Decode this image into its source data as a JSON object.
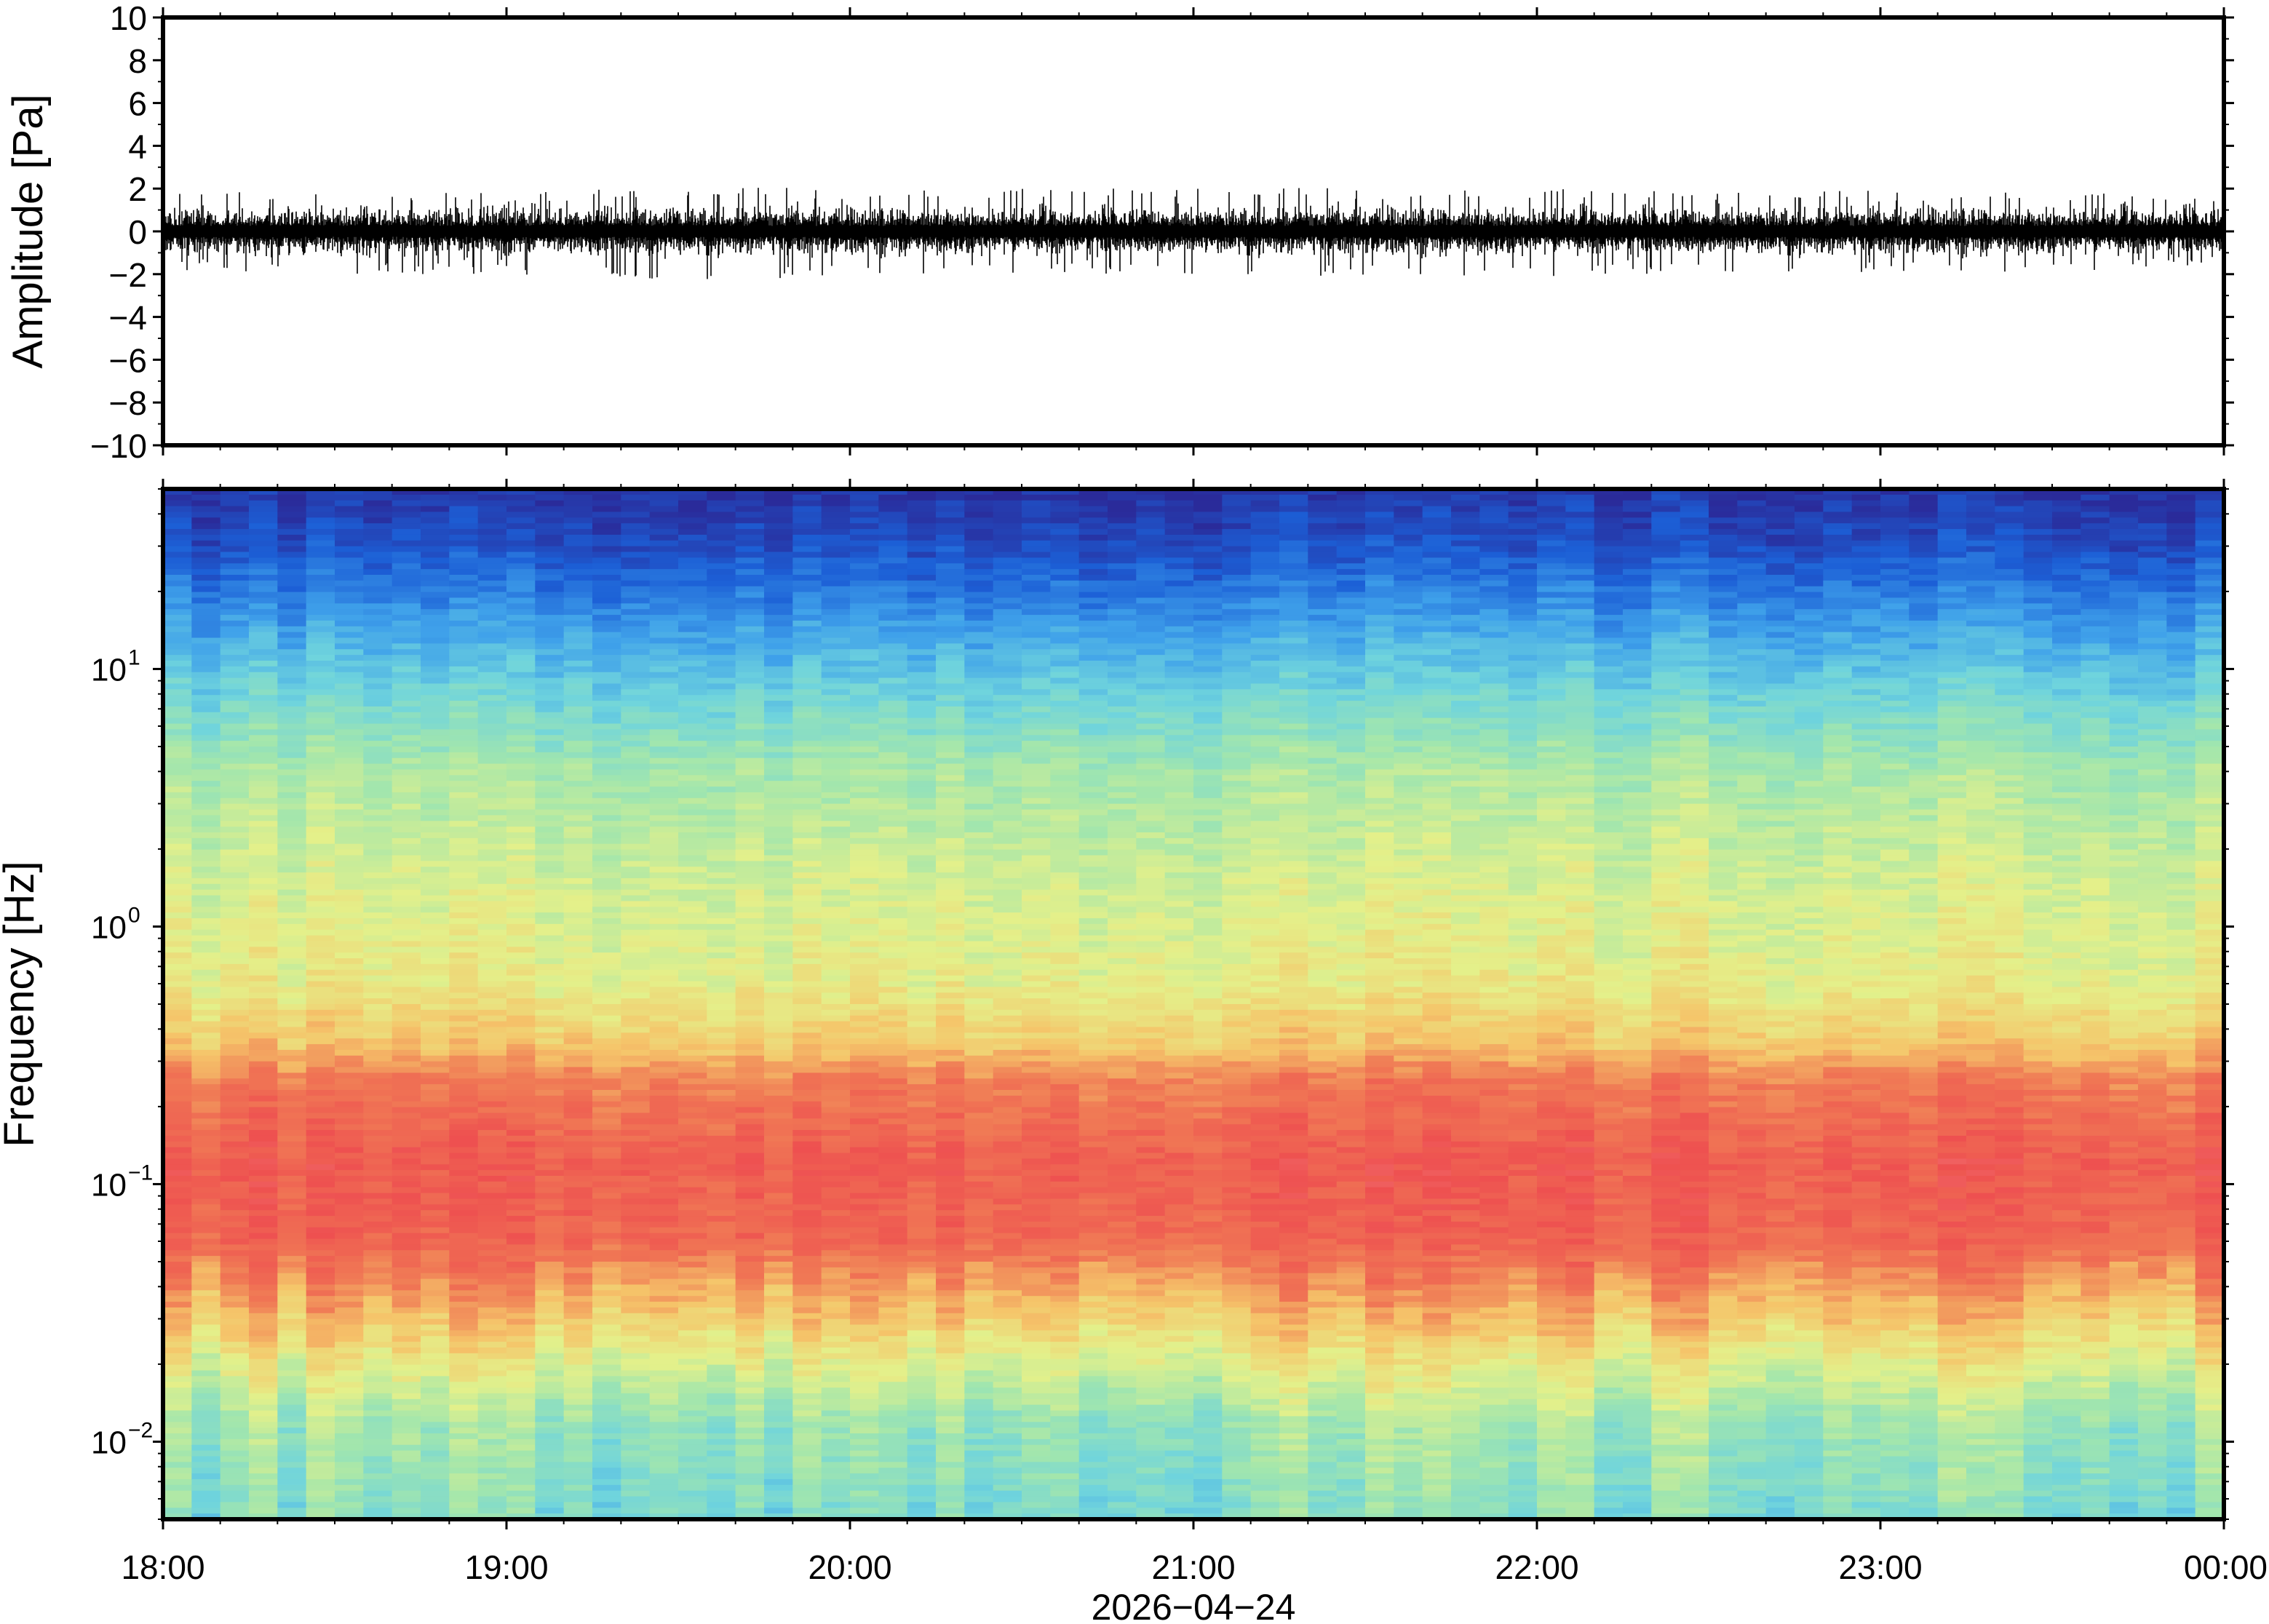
{
  "chart_data": [
    {
      "type": "line",
      "title": "",
      "xlabel": "",
      "ylabel": "Amplitude [Pa]",
      "xlim": [
        "18:00",
        "00:00"
      ],
      "ylim": [
        -10,
        10
      ],
      "yticks": [
        -10,
        -8,
        -6,
        -4,
        -2,
        0,
        2,
        4,
        6,
        8,
        10
      ],
      "yticklabels": [
        "−10",
        "−8",
        "−6",
        "−4",
        "−2",
        "0",
        "2",
        "4",
        "6",
        "8",
        "10"
      ],
      "grid": false,
      "series": [
        {
          "color": "#000000",
          "x": [
            "18:00",
            "18:30",
            "19:00",
            "19:30",
            "20:00",
            "20:30",
            "21:00",
            "21:30",
            "22:00",
            "22:30",
            "23:00",
            "23:30",
            "00:00"
          ],
          "envelope_max": [
            1.9,
            2.0,
            1.8,
            2.1,
            2.0,
            2.0,
            2.1,
            2.0,
            2.0,
            1.9,
            1.9,
            1.9,
            1.5
          ],
          "envelope_min": [
            -1.8,
            -2.0,
            -2.0,
            -2.3,
            -2.1,
            -2.0,
            -2.0,
            -2.1,
            -2.2,
            -1.9,
            -1.9,
            -2.0,
            -1.5
          ],
          "typical_amplitude": 0.8
        }
      ]
    },
    {
      "type": "heatmap",
      "title": "",
      "ylabel": "Frequency [Hz]",
      "xlabel": "2026−04−24",
      "yscale": "log",
      "ylim": [
        0.005,
        50
      ],
      "yticks": [
        0.01,
        0.1,
        1,
        10
      ],
      "ytick_base": "10",
      "ytick_exponents": [
        "−2",
        "−1",
        "0",
        "1"
      ],
      "x_ticks": [
        "18:00",
        "19:00",
        "20:00",
        "21:00",
        "22:00",
        "23:00",
        "00:00"
      ],
      "colormap": [
        "#2a2b9a",
        "#1c5fd6",
        "#3fa1ea",
        "#6fd4dd",
        "#a2e6ad",
        "#e4f08a",
        "#f5c56a",
        "#f07a55",
        "#ee5050",
        "#f48a8a"
      ],
      "bands": [
        {
          "freq_range": [
            25,
            50
          ],
          "color": "#2a2b9a"
        },
        {
          "freq_range": [
            12,
            25
          ],
          "color": "#1c5fd6"
        },
        {
          "freq_range": [
            5,
            12
          ],
          "color": "#3fa1ea"
        },
        {
          "freq_range": [
            2,
            5
          ],
          "color": "#a2e6ad"
        },
        {
          "freq_range": [
            0.45,
            2
          ],
          "color": "#e4f08a"
        },
        {
          "freq_range": [
            0.28,
            0.45
          ],
          "color": "#f5c56a"
        },
        {
          "freq_range": [
            0.05,
            0.28
          ],
          "color": "#ee5050"
        },
        {
          "freq_range": [
            0.025,
            0.05
          ],
          "color": "#f5a55a"
        },
        {
          "freq_range": [
            0.005,
            0.025
          ],
          "color": "#a2e6ad"
        }
      ]
    }
  ]
}
